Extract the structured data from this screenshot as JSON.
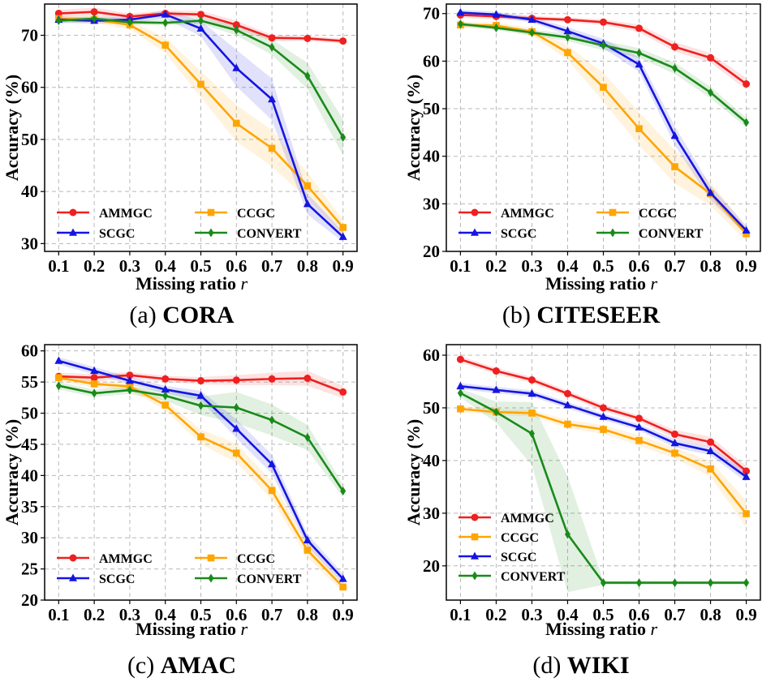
{
  "chart_data": [
    {
      "type": "line",
      "caption_prefix": "(a)",
      "caption_name": "CORA",
      "xlabel_text": "Missing ratio",
      "xlabel_var": "r",
      "ylabel": "Accuracy (%)",
      "x": [
        0.1,
        0.2,
        0.3,
        0.4,
        0.5,
        0.6,
        0.7,
        0.8,
        0.9
      ],
      "x_tick_labels": [
        "0.1",
        "0.2",
        "0.3",
        "0.4",
        "0.5",
        "0.6",
        "0.7",
        "0.8",
        "0.9"
      ],
      "ylim": [
        28.5,
        76
      ],
      "yticks": [
        30,
        40,
        50,
        60,
        70
      ],
      "grid": true,
      "legend_layout": "two-column",
      "legend_placement": "lower-left",
      "series": [
        {
          "name": "AMMGC",
          "color": "#ee2020",
          "marker": "circle",
          "values": [
            74.2,
            74.5,
            73.6,
            74.2,
            74.0,
            72.0,
            69.5,
            69.4,
            68.9
          ],
          "band": [
            0.7,
            0.8,
            0.6,
            0.6,
            0.7,
            0.8,
            0.6,
            0.5,
            0.5
          ]
        },
        {
          "name": "CCGC",
          "color": "#ffa500",
          "marker": "square",
          "values": [
            73.2,
            73.0,
            72.0,
            68.1,
            60.6,
            53.1,
            48.3,
            41.1,
            33.1
          ],
          "band": [
            0.6,
            0.6,
            0.8,
            1.5,
            2.5,
            3.5,
            3.5,
            2.5,
            1.5
          ]
        },
        {
          "name": "SCGC",
          "color": "#1515e0",
          "marker": "triangle",
          "values": [
            73.0,
            72.8,
            73.0,
            74.0,
            71.3,
            63.7,
            57.7,
            37.6,
            31.3
          ],
          "band": [
            0.6,
            0.6,
            0.6,
            0.8,
            1.5,
            3.5,
            4.0,
            2.0,
            1.0
          ]
        },
        {
          "name": "CONVERT",
          "color": "#1a8a1a",
          "marker": "diamond",
          "values": [
            72.8,
            73.2,
            72.5,
            72.4,
            72.8,
            71.0,
            67.7,
            62.2,
            50.4
          ],
          "band": [
            0.5,
            0.5,
            0.5,
            0.5,
            0.6,
            1.0,
            1.5,
            2.5,
            3.5
          ]
        }
      ]
    },
    {
      "type": "line",
      "caption_prefix": "(b)",
      "caption_name": "CITESEER",
      "xlabel_text": "Missing ratio",
      "xlabel_var": "r",
      "ylabel": "Accuracy (%)",
      "x": [
        0.1,
        0.2,
        0.3,
        0.4,
        0.5,
        0.6,
        0.7,
        0.8,
        0.9
      ],
      "x_tick_labels": [
        "0.1",
        "0.2",
        "0.3",
        "0.4",
        "0.5",
        "0.6",
        "0.7",
        "0.8",
        "0.9"
      ],
      "ylim": [
        20,
        72
      ],
      "yticks": [
        20,
        30,
        40,
        50,
        60,
        70
      ],
      "grid": true,
      "legend_layout": "two-column",
      "legend_placement": "lower-left",
      "series": [
        {
          "name": "AMMGC",
          "color": "#ee2020",
          "marker": "circle",
          "values": [
            69.7,
            69.4,
            69.0,
            68.7,
            68.2,
            66.9,
            63.0,
            60.7,
            55.2
          ],
          "band": [
            0.6,
            0.6,
            0.5,
            0.5,
            0.6,
            0.8,
            1.0,
            1.0,
            1.2
          ]
        },
        {
          "name": "CCGC",
          "color": "#ffa500",
          "marker": "square",
          "values": [
            67.6,
            67.5,
            66.2,
            61.8,
            54.5,
            45.8,
            37.8,
            32.1,
            23.7
          ],
          "band": [
            0.6,
            0.6,
            0.8,
            1.5,
            3.0,
            3.5,
            3.5,
            2.5,
            1.5
          ]
        },
        {
          "name": "SCGC",
          "color": "#1515e0",
          "marker": "triangle",
          "values": [
            70.2,
            69.8,
            68.7,
            66.3,
            63.7,
            59.3,
            44.3,
            32.3,
            24.4
          ],
          "band": [
            0.6,
            0.6,
            0.6,
            0.8,
            1.0,
            1.5,
            2.0,
            1.5,
            1.0
          ]
        },
        {
          "name": "CONVERT",
          "color": "#1a8a1a",
          "marker": "diamond",
          "values": [
            67.8,
            67.0,
            66.0,
            65.0,
            63.3,
            61.7,
            58.5,
            53.4,
            47.1
          ],
          "band": [
            0.5,
            0.5,
            0.6,
            0.8,
            1.0,
            1.0,
            1.2,
            1.2,
            1.0
          ]
        }
      ]
    },
    {
      "type": "line",
      "caption_prefix": "(c)",
      "caption_name": "AMAC",
      "xlabel_text": "Missing ratio",
      "xlabel_var": "r",
      "ylabel": "Accuracy (%)",
      "x": [
        0.1,
        0.2,
        0.3,
        0.4,
        0.5,
        0.6,
        0.7,
        0.8,
        0.9
      ],
      "x_tick_labels": [
        "0.1",
        "0.2",
        "0.3",
        "0.4",
        "0.5",
        "0.6",
        "0.7",
        "0.8",
        "0.9"
      ],
      "ylim": [
        20,
        61
      ],
      "yticks": [
        20,
        25,
        30,
        35,
        40,
        45,
        50,
        55,
        60
      ],
      "grid": true,
      "legend_layout": "two-column",
      "legend_placement": "lower-left",
      "series": [
        {
          "name": "AMMGC",
          "color": "#ee2020",
          "marker": "circle",
          "values": [
            55.9,
            55.7,
            56.1,
            55.5,
            55.2,
            55.3,
            55.5,
            55.6,
            53.4
          ],
          "band": [
            0.6,
            0.6,
            0.5,
            0.5,
            0.6,
            0.8,
            1.0,
            1.2,
            1.0
          ]
        },
        {
          "name": "CCGC",
          "color": "#ffa500",
          "marker": "square",
          "values": [
            55.7,
            54.7,
            54.3,
            51.3,
            46.2,
            43.6,
            37.6,
            28.0,
            22.1
          ],
          "band": [
            0.6,
            0.6,
            0.6,
            0.8,
            1.2,
            1.5,
            1.5,
            1.2,
            0.8
          ]
        },
        {
          "name": "SCGC",
          "color": "#1515e0",
          "marker": "triangle",
          "values": [
            58.4,
            56.8,
            55.2,
            53.8,
            52.8,
            47.5,
            41.8,
            29.6,
            23.4
          ],
          "band": [
            0.6,
            0.6,
            0.6,
            0.6,
            0.8,
            1.5,
            1.5,
            1.0,
            0.8
          ]
        },
        {
          "name": "CONVERT",
          "color": "#1a8a1a",
          "marker": "diamond",
          "values": [
            54.4,
            53.2,
            53.7,
            52.8,
            51.2,
            50.9,
            48.9,
            46.1,
            37.5
          ],
          "band": [
            0.6,
            0.6,
            0.6,
            0.8,
            1.5,
            2.5,
            2.5,
            2.0,
            1.0
          ]
        }
      ]
    },
    {
      "type": "line",
      "caption_prefix": "(d)",
      "caption_name": "WIKI",
      "xlabel_text": "Missing ratio",
      "xlabel_var": "r",
      "ylabel": "Accuracy (%)",
      "x": [
        0.1,
        0.2,
        0.3,
        0.4,
        0.5,
        0.6,
        0.7,
        0.8,
        0.9
      ],
      "x_tick_labels": [
        "0.1",
        "0.2",
        "0.3",
        "0.4",
        "0.5",
        "0.6",
        "0.7",
        "0.8",
        "0.9"
      ],
      "ylim": [
        13.5,
        62
      ],
      "yticks": [
        20,
        30,
        40,
        50,
        60
      ],
      "grid": true,
      "legend_layout": "one-column",
      "legend_placement": "lower-left",
      "series": [
        {
          "name": "AMMGC",
          "color": "#ee2020",
          "marker": "circle",
          "values": [
            59.2,
            57.0,
            55.3,
            52.7,
            50.0,
            48.0,
            45.0,
            43.5,
            38.0
          ],
          "band": [
            0.6,
            0.6,
            0.6,
            0.6,
            0.6,
            0.6,
            0.8,
            1.0,
            1.0
          ]
        },
        {
          "name": "CCGC",
          "color": "#ffa500",
          "marker": "square",
          "values": [
            49.8,
            49.2,
            49.0,
            46.9,
            45.9,
            43.8,
            41.4,
            38.4,
            29.9
          ],
          "band": [
            0.6,
            0.6,
            0.6,
            0.8,
            0.8,
            1.0,
            1.0,
            1.5,
            2.5
          ]
        },
        {
          "name": "SCGC",
          "color": "#1515e0",
          "marker": "triangle",
          "values": [
            54.1,
            53.4,
            52.7,
            50.5,
            48.3,
            46.3,
            43.3,
            41.8,
            36.9
          ],
          "band": [
            0.6,
            0.6,
            0.6,
            0.6,
            0.6,
            0.6,
            0.8,
            0.8,
            1.0
          ]
        },
        {
          "name": "CONVERT",
          "color": "#1a8a1a",
          "marker": "diamond",
          "values": [
            52.8,
            49.2,
            45.1,
            26.0,
            16.8,
            16.8,
            16.8,
            16.8,
            16.8
          ],
          "band": [
            0.8,
            2.0,
            6.0,
            11.0,
            0.4,
            0.4,
            0.4,
            0.4,
            0.4
          ]
        }
      ]
    }
  ]
}
